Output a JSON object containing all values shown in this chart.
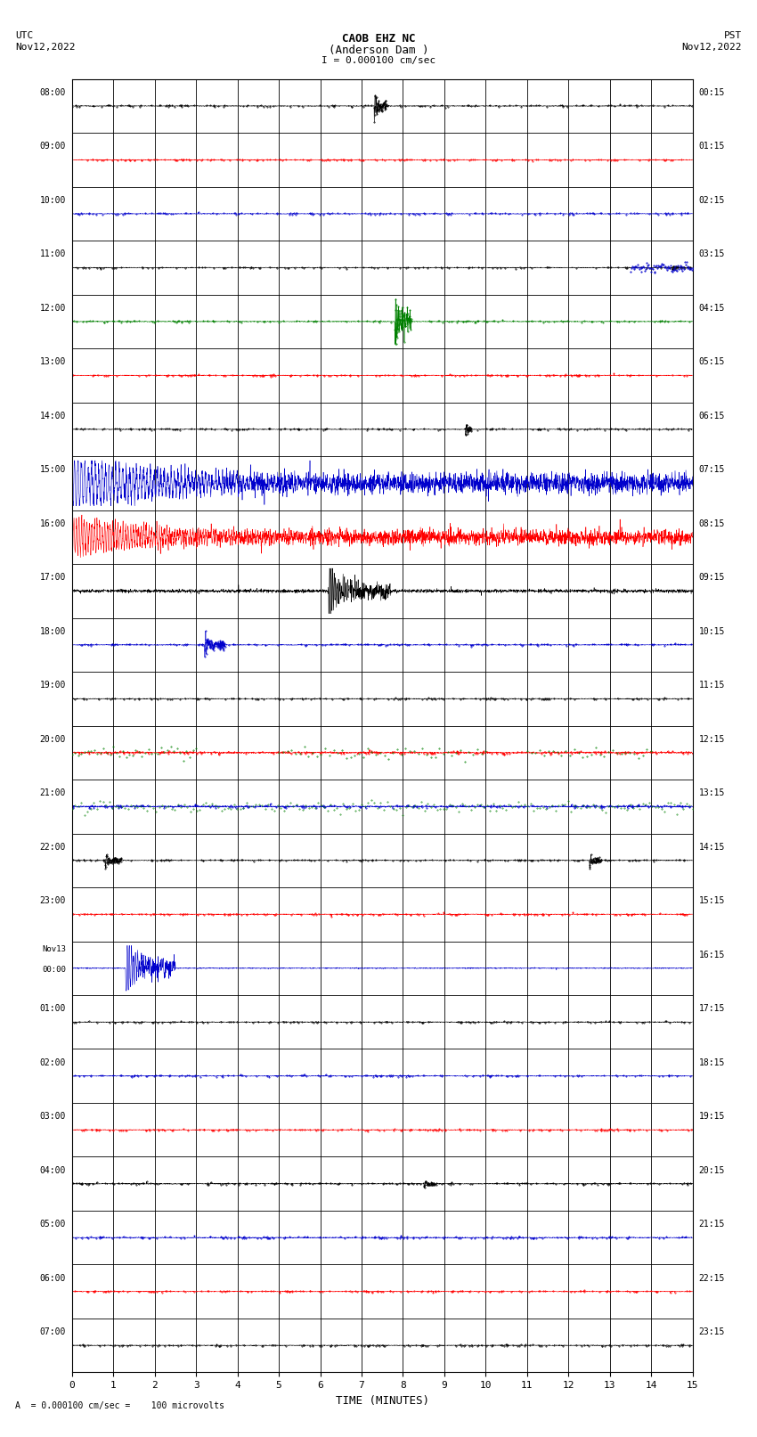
{
  "title_line1": "CAOB EHZ NC",
  "title_line2": "(Anderson Dam )",
  "scale_label": "I = 0.000100 cm/sec",
  "utc_label_line1": "UTC",
  "utc_label_line2": "Nov12,2022",
  "pst_label_line1": "PST",
  "pst_label_line2": "Nov12,2022",
  "bottom_label": "A  = 0.000100 cm/sec =    100 microvolts",
  "xlabel": "TIME (MINUTES)",
  "left_times": [
    "08:00",
    "09:00",
    "10:00",
    "11:00",
    "12:00",
    "13:00",
    "14:00",
    "15:00",
    "16:00",
    "17:00",
    "18:00",
    "19:00",
    "20:00",
    "21:00",
    "22:00",
    "23:00",
    "Nov13\n00:00",
    "01:00",
    "02:00",
    "03:00",
    "04:00",
    "05:00",
    "06:00",
    "07:00"
  ],
  "right_times": [
    "00:15",
    "01:15",
    "02:15",
    "03:15",
    "04:15",
    "05:15",
    "06:15",
    "07:15",
    "08:15",
    "09:15",
    "10:15",
    "11:15",
    "12:15",
    "13:15",
    "14:15",
    "15:15",
    "16:15",
    "17:15",
    "18:15",
    "19:15",
    "20:15",
    "21:15",
    "22:15",
    "23:15"
  ],
  "n_rows": 24,
  "minutes_per_row": 15,
  "bg_color": "#ffffff",
  "grid_color": "#000000",
  "row_colors": [
    "#000000",
    "#ff0000",
    "#0000cd",
    "#008000",
    "#000000",
    "#ff0000",
    "#0000cd",
    "#008000",
    "#000000",
    "#ff0000",
    "#0000cd",
    "#008000",
    "#000000",
    "#ff0000",
    "#0000cd",
    "#008000",
    "#000000",
    "#ff0000",
    "#0000cd",
    "#008000",
    "#000000",
    "#ff0000",
    "#0000cd",
    "#008000"
  ],
  "event_rows_colors": {
    "0": "#000000",
    "4": "#ff0000",
    "7": "#0000cd",
    "8": "#ff0000",
    "9": "#000000",
    "10": "#0000cd",
    "14": "#000000",
    "16": "#0000cd",
    "20": "#ff0000",
    "21": "#0000cd"
  }
}
